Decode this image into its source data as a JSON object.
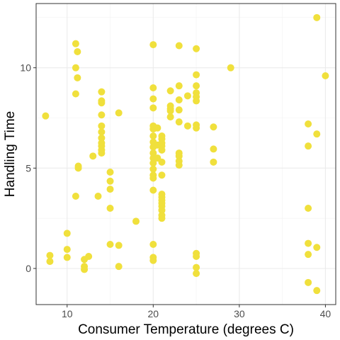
{
  "chart_data": {
    "type": "scatter",
    "title": "",
    "xlabel": "Consumer Temperature (degrees C)",
    "ylabel": "Handling Time",
    "xlim": [
      6.4,
      41.2
    ],
    "ylim": [
      -1.8,
      13.2
    ],
    "x_ticks": [
      10,
      20,
      30,
      40
    ],
    "y_ticks": [
      0,
      5,
      10
    ],
    "grid": true,
    "point_color": "#f0e03c",
    "points": [
      {
        "x": 7.5,
        "y": 7.6
      },
      {
        "x": 8,
        "y": 0.65
      },
      {
        "x": 8,
        "y": 0.35
      },
      {
        "x": 10,
        "y": 1.75
      },
      {
        "x": 10,
        "y": 0.95
      },
      {
        "x": 10,
        "y": 0.55
      },
      {
        "x": 11,
        "y": 11.2
      },
      {
        "x": 11.2,
        "y": 10.8
      },
      {
        "x": 11,
        "y": 10.0
      },
      {
        "x": 11.2,
        "y": 9.5
      },
      {
        "x": 11,
        "y": 8.7
      },
      {
        "x": 11.3,
        "y": 5.1
      },
      {
        "x": 11.3,
        "y": 5.0
      },
      {
        "x": 11,
        "y": 3.6
      },
      {
        "x": 12,
        "y": 0.45
      },
      {
        "x": 12,
        "y": 0.1
      },
      {
        "x": 12,
        "y": -0.05
      },
      {
        "x": 12.5,
        "y": 0.6
      },
      {
        "x": 13,
        "y": 5.6
      },
      {
        "x": 13.6,
        "y": 3.6
      },
      {
        "x": 14,
        "y": 8.8
      },
      {
        "x": 14,
        "y": 8.35
      },
      {
        "x": 14,
        "y": 8.25
      },
      {
        "x": 14,
        "y": 7.65
      },
      {
        "x": 14,
        "y": 7.1
      },
      {
        "x": 14,
        "y": 6.8
      },
      {
        "x": 14,
        "y": 6.5
      },
      {
        "x": 14,
        "y": 6.25
      },
      {
        "x": 14,
        "y": 6.1
      },
      {
        "x": 14,
        "y": 5.9
      },
      {
        "x": 14,
        "y": 5.75
      },
      {
        "x": 15,
        "y": 4.8
      },
      {
        "x": 15,
        "y": 4.35
      },
      {
        "x": 15,
        "y": 3.95
      },
      {
        "x": 15,
        "y": 3.0
      },
      {
        "x": 15,
        "y": 1.2
      },
      {
        "x": 16,
        "y": 7.75
      },
      {
        "x": 16,
        "y": 1.15
      },
      {
        "x": 16,
        "y": 0.1
      },
      {
        "x": 18,
        "y": 2.35
      },
      {
        "x": 20,
        "y": 11.15
      },
      {
        "x": 20,
        "y": 9.0
      },
      {
        "x": 20,
        "y": 8.45
      },
      {
        "x": 20,
        "y": 8.0
      },
      {
        "x": 20,
        "y": 7.1
      },
      {
        "x": 20,
        "y": 6.95
      },
      {
        "x": 20.5,
        "y": 7.0
      },
      {
        "x": 20,
        "y": 6.6
      },
      {
        "x": 20,
        "y": 6.3
      },
      {
        "x": 20,
        "y": 6.05
      },
      {
        "x": 20,
        "y": 5.75
      },
      {
        "x": 20,
        "y": 5.5
      },
      {
        "x": 20,
        "y": 5.25
      },
      {
        "x": 20,
        "y": 4.95
      },
      {
        "x": 20,
        "y": 4.65
      },
      {
        "x": 20,
        "y": 4.5
      },
      {
        "x": 20,
        "y": 3.9
      },
      {
        "x": 20,
        "y": 1.2
      },
      {
        "x": 20,
        "y": 0.55
      },
      {
        "x": 20,
        "y": 0.4
      },
      {
        "x": 20.5,
        "y": 6.15
      },
      {
        "x": 20.5,
        "y": 5.5
      },
      {
        "x": 21,
        "y": 6.6
      },
      {
        "x": 21,
        "y": 6.45
      },
      {
        "x": 21,
        "y": 6.25
      },
      {
        "x": 21,
        "y": 6.1
      },
      {
        "x": 21,
        "y": 5.9
      },
      {
        "x": 21,
        "y": 5.3
      },
      {
        "x": 21,
        "y": 4.65
      },
      {
        "x": 21,
        "y": 3.7
      },
      {
        "x": 21,
        "y": 3.55
      },
      {
        "x": 21,
        "y": 3.4
      },
      {
        "x": 21,
        "y": 3.25
      },
      {
        "x": 21,
        "y": 3.1
      },
      {
        "x": 21,
        "y": 2.9
      },
      {
        "x": 21,
        "y": 2.65
      },
      {
        "x": 21,
        "y": 2.5
      },
      {
        "x": 22,
        "y": 8.85
      },
      {
        "x": 22,
        "y": 8.1
      },
      {
        "x": 22,
        "y": 7.95
      },
      {
        "x": 22,
        "y": 7.85
      },
      {
        "x": 22,
        "y": 7.55
      },
      {
        "x": 23,
        "y": 11.1
      },
      {
        "x": 23,
        "y": 9.1
      },
      {
        "x": 23,
        "y": 8.4
      },
      {
        "x": 23,
        "y": 7.9
      },
      {
        "x": 23,
        "y": 7.3
      },
      {
        "x": 23,
        "y": 5.75
      },
      {
        "x": 23,
        "y": 5.6
      },
      {
        "x": 23,
        "y": 5.35
      },
      {
        "x": 23,
        "y": 5.15
      },
      {
        "x": 24,
        "y": 8.6
      },
      {
        "x": 24,
        "y": 7.1
      },
      {
        "x": 25,
        "y": 10.95
      },
      {
        "x": 25,
        "y": 9.65
      },
      {
        "x": 25,
        "y": 9.1
      },
      {
        "x": 25,
        "y": 8.75
      },
      {
        "x": 25,
        "y": 8.55
      },
      {
        "x": 25,
        "y": 8.35
      },
      {
        "x": 25,
        "y": 7.15
      },
      {
        "x": 25,
        "y": 7.0
      },
      {
        "x": 25,
        "y": 0.75
      },
      {
        "x": 25,
        "y": 0.6
      },
      {
        "x": 25,
        "y": 0.05
      },
      {
        "x": 25,
        "y": -0.25
      },
      {
        "x": 27,
        "y": 7.05
      },
      {
        "x": 27,
        "y": 5.95
      },
      {
        "x": 27,
        "y": 5.3
      },
      {
        "x": 29,
        "y": 10.0
      },
      {
        "x": 38,
        "y": 7.2
      },
      {
        "x": 38,
        "y": 6.1
      },
      {
        "x": 38,
        "y": 3.0
      },
      {
        "x": 38,
        "y": 1.25
      },
      {
        "x": 38,
        "y": 0.7
      },
      {
        "x": 38,
        "y": -0.7
      },
      {
        "x": 39,
        "y": 12.5
      },
      {
        "x": 39,
        "y": 6.7
      },
      {
        "x": 39,
        "y": 1.05
      },
      {
        "x": 39,
        "y": -1.1
      },
      {
        "x": 40,
        "y": 9.6
      }
    ]
  }
}
